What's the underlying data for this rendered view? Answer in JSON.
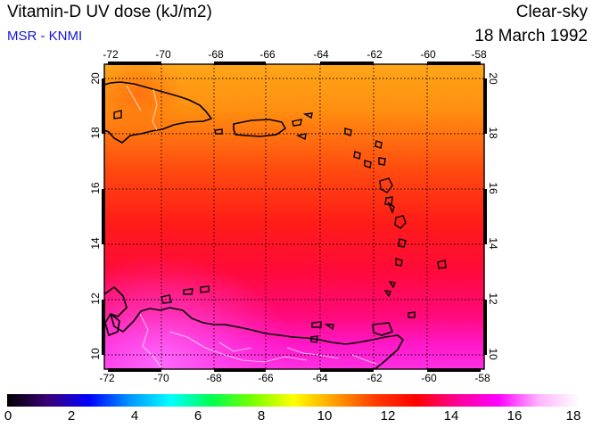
{
  "header": {
    "title": "Vitamin-D UV dose (kJ/m2)",
    "credit": "MSR - KNMI",
    "condition": "Clear-sky",
    "date": "18 March 1992"
  },
  "map": {
    "lon_labels": [
      "-72",
      "-70",
      "-68",
      "-66",
      "-64",
      "-62",
      "-60",
      "-58"
    ],
    "lat_labels": [
      "10",
      "12",
      "14",
      "16",
      "18",
      "20"
    ],
    "lon_range": [
      -72,
      -58
    ],
    "lat_range": [
      9.5,
      20.3
    ],
    "gridlines": "dotted"
  },
  "colorbar": {
    "ticks": [
      "0",
      "2",
      "4",
      "6",
      "8",
      "10",
      "12",
      "14",
      "16",
      "18"
    ],
    "range": [
      0,
      18
    ],
    "colors": [
      "#000000",
      "#3a0078",
      "#0000ff",
      "#0096ff",
      "#00ffff",
      "#00ff50",
      "#78ff00",
      "#ffff00",
      "#ffa000",
      "#ff3c00",
      "#ff0000",
      "#ff0096",
      "#ff00ff",
      "#ffb4ff",
      "#ffffff"
    ]
  }
}
